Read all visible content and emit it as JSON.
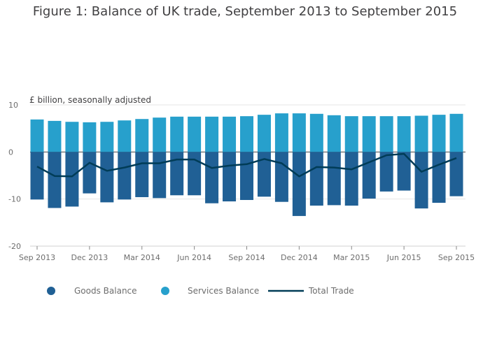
{
  "chart_data": {
    "type": "bar",
    "title": "Figure 1: Balance of UK trade, September 2013 to September 2015",
    "units_label": "£ billion, seasonally adjusted",
    "categories": [
      "Sep 2013",
      "Oct 2013",
      "Nov 2013",
      "Dec 2013",
      "Jan 2014",
      "Feb 2014",
      "Mar 2014",
      "Apr 2014",
      "May 2014",
      "Jun 2014",
      "Jul 2014",
      "Aug 2014",
      "Sep 2014",
      "Oct 2014",
      "Nov 2014",
      "Dec 2014",
      "Jan 2015",
      "Feb 2015",
      "Mar 2015",
      "Apr 2015",
      "May 2015",
      "Jun 2015",
      "Jul 2015",
      "Aug 2015",
      "Sep 2015"
    ],
    "x_tick_labels": [
      "Sep 2013",
      "Dec 2013",
      "Mar 2014",
      "Jun 2014",
      "Sep 2014",
      "Dec 2014",
      "Mar 2015",
      "Jun 2015",
      "Sep 2015"
    ],
    "x_tick_indices": [
      0,
      3,
      6,
      9,
      12,
      15,
      18,
      21,
      24
    ],
    "ylim": [
      -20,
      10
    ],
    "y_ticks": [
      10,
      0,
      -10,
      -20
    ],
    "series": [
      {
        "name": "Goods Balance",
        "type": "bar",
        "color": "#206095",
        "values": [
          -10.1,
          -11.9,
          -11.6,
          -8.8,
          -10.7,
          -10.1,
          -9.6,
          -9.8,
          -9.2,
          -9.2,
          -10.9,
          -10.5,
          -10.2,
          -9.5,
          -10.6,
          -13.6,
          -11.4,
          -11.3,
          -11.4,
          -9.9,
          -8.4,
          -8.2,
          -12.0,
          -10.8,
          -9.4
        ]
      },
      {
        "name": "Services Balance",
        "type": "bar",
        "color": "#27a0cc",
        "values": [
          6.9,
          6.6,
          6.4,
          6.3,
          6.4,
          6.7,
          7.0,
          7.3,
          7.5,
          7.5,
          7.5,
          7.5,
          7.6,
          7.9,
          8.2,
          8.2,
          8.1,
          7.8,
          7.6,
          7.6,
          7.6,
          7.6,
          7.7,
          7.9,
          8.1
        ]
      },
      {
        "name": "Total Trade",
        "type": "line",
        "color": "#003c57",
        "values": [
          -3.1,
          -5.1,
          -5.2,
          -2.3,
          -4.0,
          -3.3,
          -2.4,
          -2.4,
          -1.6,
          -1.6,
          -3.4,
          -2.9,
          -2.6,
          -1.5,
          -2.4,
          -5.2,
          -3.2,
          -3.3,
          -3.7,
          -2.2,
          -0.7,
          -0.4,
          -4.2,
          -2.7,
          -1.3
        ]
      }
    ]
  }
}
